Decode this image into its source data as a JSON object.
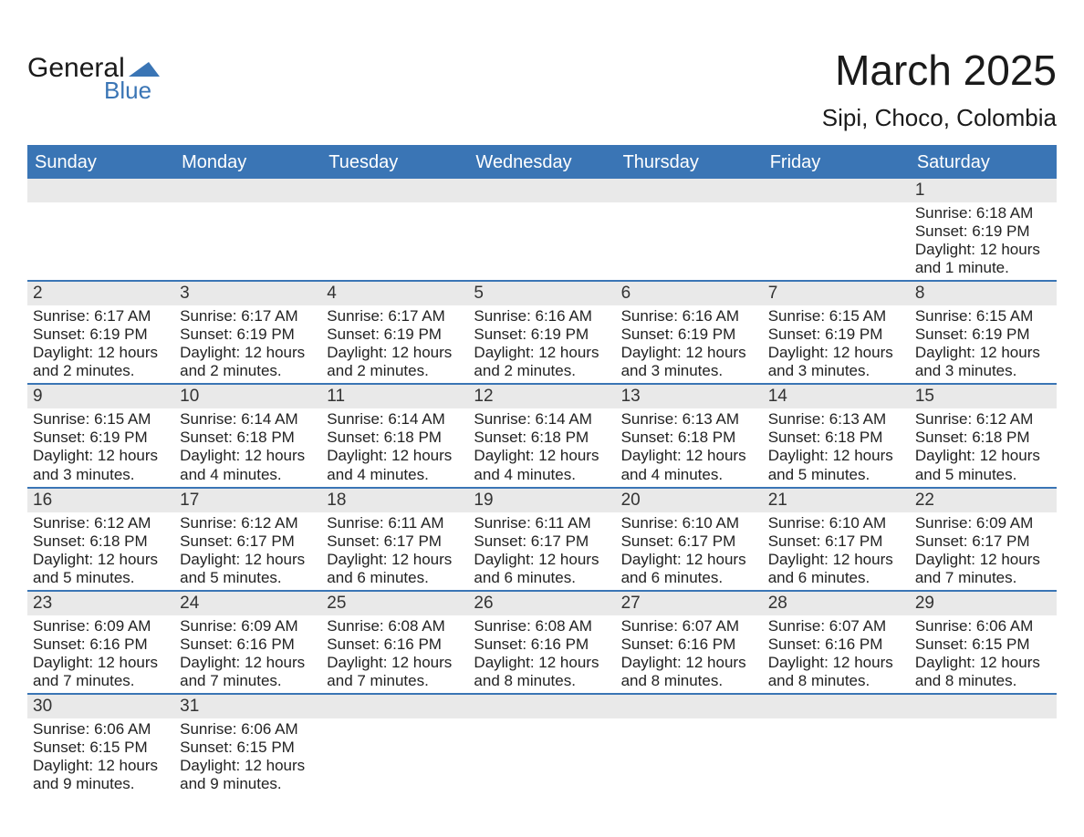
{
  "logo": {
    "word1": "General",
    "word2": "Blue",
    "triangle_color": "#3a75b5",
    "text_color_top": "#1a1a1a",
    "text_color_bottom": "#3a75b5"
  },
  "title": "March 2025",
  "location": "Sipi, Choco, Colombia",
  "colors": {
    "header_bg": "#3a75b5",
    "header_text": "#ffffff",
    "row_divider": "#3a75b5",
    "daynum_bg": "#e9e9e9",
    "body_text": "#222222",
    "page_bg": "#ffffff"
  },
  "fonts": {
    "title_size_pt": 34,
    "location_size_pt": 20,
    "header_size_pt": 15,
    "daynum_size_pt": 14,
    "body_size_pt": 13,
    "family": "Arial"
  },
  "day_names": [
    "Sunday",
    "Monday",
    "Tuesday",
    "Wednesday",
    "Thursday",
    "Friday",
    "Saturday"
  ],
  "weeks": [
    [
      null,
      null,
      null,
      null,
      null,
      null,
      {
        "n": "1",
        "sunrise": "Sunrise: 6:18 AM",
        "sunset": "Sunset: 6:19 PM",
        "daylight": "Daylight: 12 hours and 1 minute."
      }
    ],
    [
      {
        "n": "2",
        "sunrise": "Sunrise: 6:17 AM",
        "sunset": "Sunset: 6:19 PM",
        "daylight": "Daylight: 12 hours and 2 minutes."
      },
      {
        "n": "3",
        "sunrise": "Sunrise: 6:17 AM",
        "sunset": "Sunset: 6:19 PM",
        "daylight": "Daylight: 12 hours and 2 minutes."
      },
      {
        "n": "4",
        "sunrise": "Sunrise: 6:17 AM",
        "sunset": "Sunset: 6:19 PM",
        "daylight": "Daylight: 12 hours and 2 minutes."
      },
      {
        "n": "5",
        "sunrise": "Sunrise: 6:16 AM",
        "sunset": "Sunset: 6:19 PM",
        "daylight": "Daylight: 12 hours and 2 minutes."
      },
      {
        "n": "6",
        "sunrise": "Sunrise: 6:16 AM",
        "sunset": "Sunset: 6:19 PM",
        "daylight": "Daylight: 12 hours and 3 minutes."
      },
      {
        "n": "7",
        "sunrise": "Sunrise: 6:15 AM",
        "sunset": "Sunset: 6:19 PM",
        "daylight": "Daylight: 12 hours and 3 minutes."
      },
      {
        "n": "8",
        "sunrise": "Sunrise: 6:15 AM",
        "sunset": "Sunset: 6:19 PM",
        "daylight": "Daylight: 12 hours and 3 minutes."
      }
    ],
    [
      {
        "n": "9",
        "sunrise": "Sunrise: 6:15 AM",
        "sunset": "Sunset: 6:19 PM",
        "daylight": "Daylight: 12 hours and 3 minutes."
      },
      {
        "n": "10",
        "sunrise": "Sunrise: 6:14 AM",
        "sunset": "Sunset: 6:18 PM",
        "daylight": "Daylight: 12 hours and 4 minutes."
      },
      {
        "n": "11",
        "sunrise": "Sunrise: 6:14 AM",
        "sunset": "Sunset: 6:18 PM",
        "daylight": "Daylight: 12 hours and 4 minutes."
      },
      {
        "n": "12",
        "sunrise": "Sunrise: 6:14 AM",
        "sunset": "Sunset: 6:18 PM",
        "daylight": "Daylight: 12 hours and 4 minutes."
      },
      {
        "n": "13",
        "sunrise": "Sunrise: 6:13 AM",
        "sunset": "Sunset: 6:18 PM",
        "daylight": "Daylight: 12 hours and 4 minutes."
      },
      {
        "n": "14",
        "sunrise": "Sunrise: 6:13 AM",
        "sunset": "Sunset: 6:18 PM",
        "daylight": "Daylight: 12 hours and 5 minutes."
      },
      {
        "n": "15",
        "sunrise": "Sunrise: 6:12 AM",
        "sunset": "Sunset: 6:18 PM",
        "daylight": "Daylight: 12 hours and 5 minutes."
      }
    ],
    [
      {
        "n": "16",
        "sunrise": "Sunrise: 6:12 AM",
        "sunset": "Sunset: 6:18 PM",
        "daylight": "Daylight: 12 hours and 5 minutes."
      },
      {
        "n": "17",
        "sunrise": "Sunrise: 6:12 AM",
        "sunset": "Sunset: 6:17 PM",
        "daylight": "Daylight: 12 hours and 5 minutes."
      },
      {
        "n": "18",
        "sunrise": "Sunrise: 6:11 AM",
        "sunset": "Sunset: 6:17 PM",
        "daylight": "Daylight: 12 hours and 6 minutes."
      },
      {
        "n": "19",
        "sunrise": "Sunrise: 6:11 AM",
        "sunset": "Sunset: 6:17 PM",
        "daylight": "Daylight: 12 hours and 6 minutes."
      },
      {
        "n": "20",
        "sunrise": "Sunrise: 6:10 AM",
        "sunset": "Sunset: 6:17 PM",
        "daylight": "Daylight: 12 hours and 6 minutes."
      },
      {
        "n": "21",
        "sunrise": "Sunrise: 6:10 AM",
        "sunset": "Sunset: 6:17 PM",
        "daylight": "Daylight: 12 hours and 6 minutes."
      },
      {
        "n": "22",
        "sunrise": "Sunrise: 6:09 AM",
        "sunset": "Sunset: 6:17 PM",
        "daylight": "Daylight: 12 hours and 7 minutes."
      }
    ],
    [
      {
        "n": "23",
        "sunrise": "Sunrise: 6:09 AM",
        "sunset": "Sunset: 6:16 PM",
        "daylight": "Daylight: 12 hours and 7 minutes."
      },
      {
        "n": "24",
        "sunrise": "Sunrise: 6:09 AM",
        "sunset": "Sunset: 6:16 PM",
        "daylight": "Daylight: 12 hours and 7 minutes."
      },
      {
        "n": "25",
        "sunrise": "Sunrise: 6:08 AM",
        "sunset": "Sunset: 6:16 PM",
        "daylight": "Daylight: 12 hours and 7 minutes."
      },
      {
        "n": "26",
        "sunrise": "Sunrise: 6:08 AM",
        "sunset": "Sunset: 6:16 PM",
        "daylight": "Daylight: 12 hours and 8 minutes."
      },
      {
        "n": "27",
        "sunrise": "Sunrise: 6:07 AM",
        "sunset": "Sunset: 6:16 PM",
        "daylight": "Daylight: 12 hours and 8 minutes."
      },
      {
        "n": "28",
        "sunrise": "Sunrise: 6:07 AM",
        "sunset": "Sunset: 6:16 PM",
        "daylight": "Daylight: 12 hours and 8 minutes."
      },
      {
        "n": "29",
        "sunrise": "Sunrise: 6:06 AM",
        "sunset": "Sunset: 6:15 PM",
        "daylight": "Daylight: 12 hours and 8 minutes."
      }
    ],
    [
      {
        "n": "30",
        "sunrise": "Sunrise: 6:06 AM",
        "sunset": "Sunset: 6:15 PM",
        "daylight": "Daylight: 12 hours and 9 minutes."
      },
      {
        "n": "31",
        "sunrise": "Sunrise: 6:06 AM",
        "sunset": "Sunset: 6:15 PM",
        "daylight": "Daylight: 12 hours and 9 minutes."
      },
      null,
      null,
      null,
      null,
      null
    ]
  ]
}
